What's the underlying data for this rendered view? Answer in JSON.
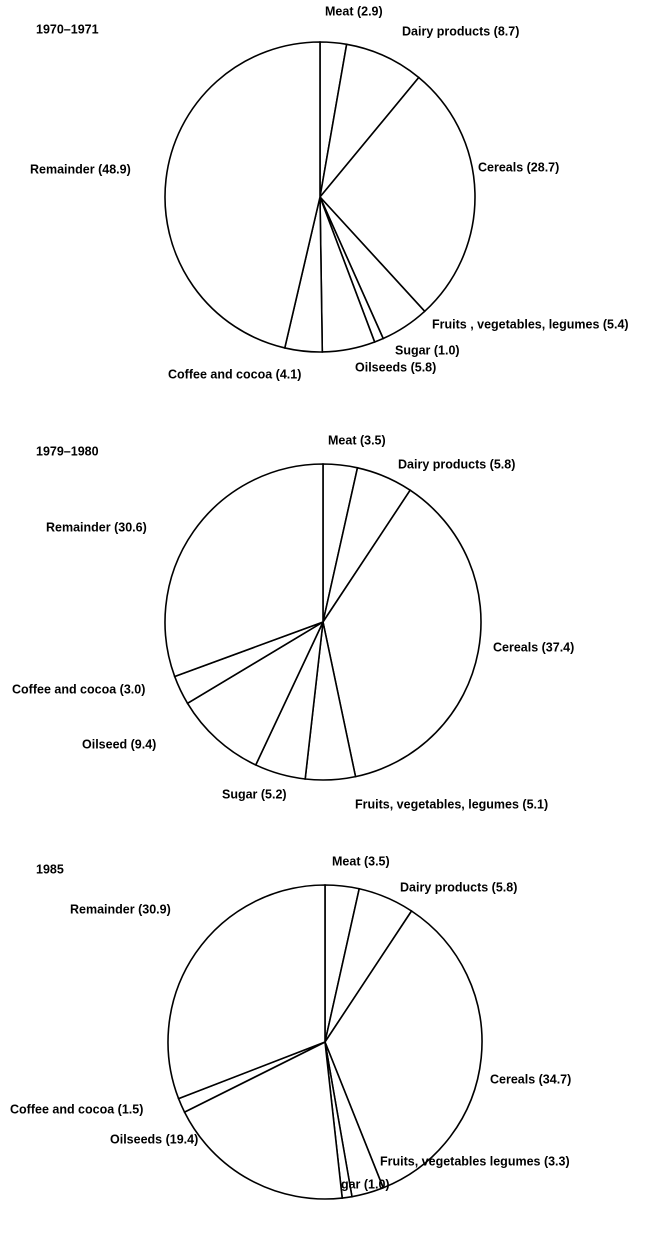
{
  "chart_data": [
    {
      "type": "pie",
      "title": "1970–1971",
      "values": [
        2.9,
        8.7,
        28.7,
        5.4,
        1.0,
        5.8,
        4.1,
        48.9
      ],
      "value_labels": [
        "Meat (2.9)",
        "Dairy products (8.7)",
        "Cereals (28.7)",
        "Fruits , vegetables, legumes (5.4)",
        "Sugar (1.0)",
        "Oilseeds (5.8)",
        "Coffee and cocoa (4.1)",
        "Remainder (48.9)"
      ]
    },
    {
      "type": "pie",
      "title": "1979–1980",
      "values": [
        3.5,
        5.8,
        37.4,
        5.1,
        5.2,
        9.4,
        3.0,
        30.6
      ],
      "value_labels": [
        "Meat (3.5)",
        "Dairy products (5.8)",
        "Cereals (37.4)",
        "Fruits, vegetables, legumes (5.1)",
        "Sugar (5.2)",
        "Oilseed (9.4)",
        "Coffee and cocoa (3.0)",
        "Remainder (30.6)"
      ]
    },
    {
      "type": "pie",
      "title": "1985",
      "values": [
        3.5,
        5.8,
        34.7,
        3.3,
        1.0,
        19.4,
        1.5,
        30.9
      ],
      "value_labels": [
        "Meat (3.5)",
        "Dairy products (5.8)",
        "Cereals (34.7)",
        "Fruits, vegetables legumes (3.3)",
        "Sugar (1.0)",
        "Oilseeds (19.4)",
        "Coffee and cocoa (1.5)",
        "Remainder (30.9)"
      ]
    }
  ]
}
